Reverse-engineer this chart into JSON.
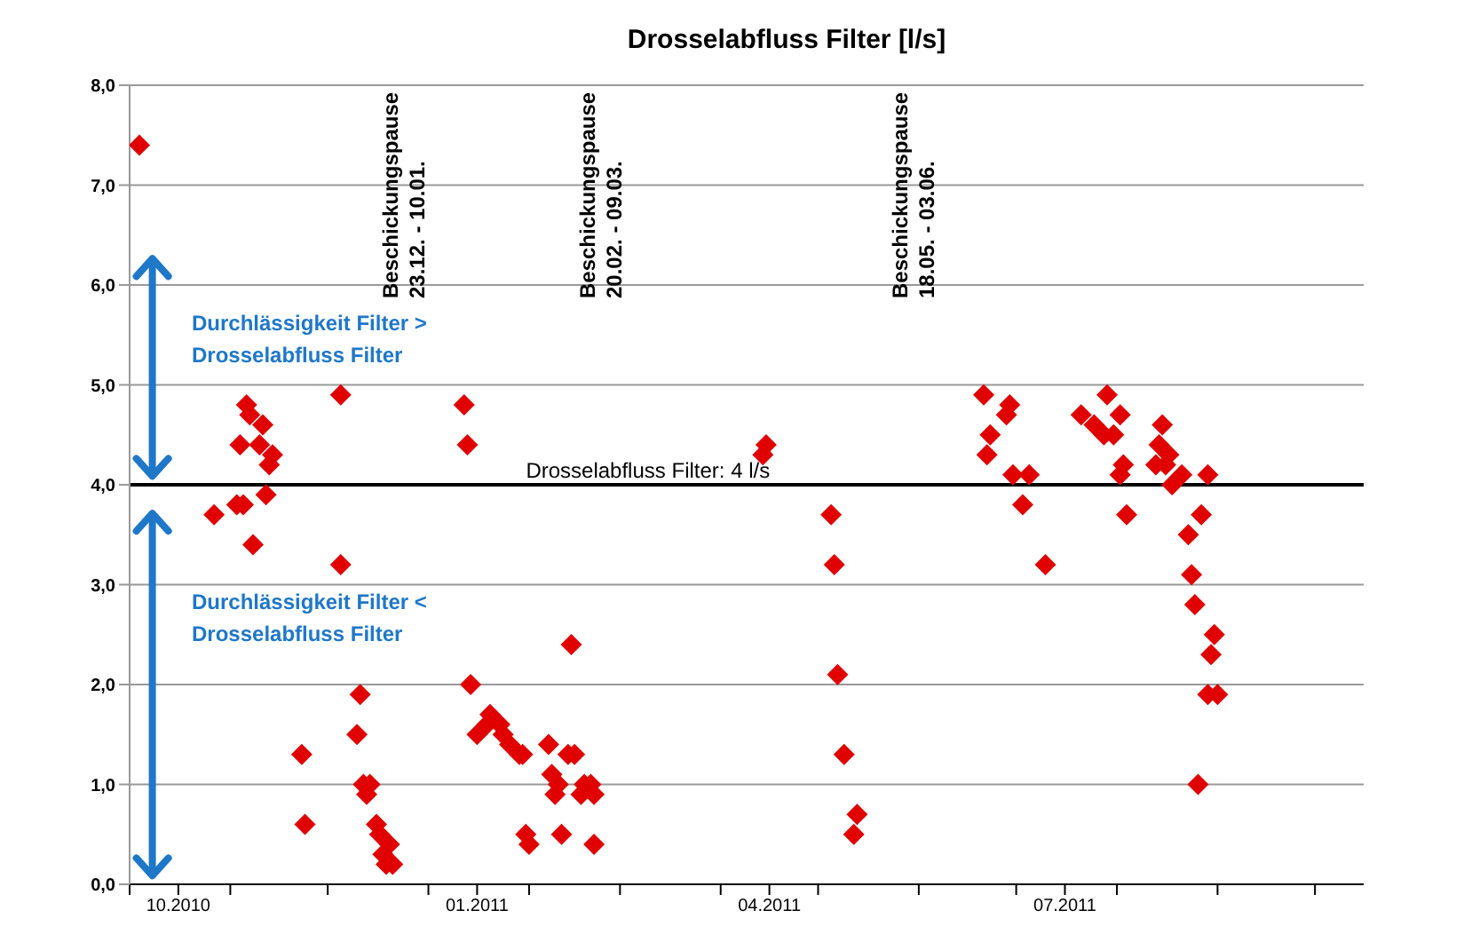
{
  "chart_data": {
    "type": "scatter",
    "title": "Drosselabfluss Filter [l/s]",
    "xlim": [
      "2010-10-01",
      "2011-10-16"
    ],
    "xticks": [
      {
        "value": "2010-10-01",
        "label": null
      },
      {
        "value": "2010-10-16",
        "label": "10.2010"
      },
      {
        "value": "2010-11-01",
        "label": null
      },
      {
        "value": "2010-12-01",
        "label": null
      },
      {
        "value": "2011-01-01",
        "label": null
      },
      {
        "value": "2011-01-16",
        "label": "01.2011"
      },
      {
        "value": "2011-02-01",
        "label": null
      },
      {
        "value": "2011-03-01",
        "label": null
      },
      {
        "value": "2011-04-01",
        "label": null
      },
      {
        "value": "2011-04-16",
        "label": "04.2011"
      },
      {
        "value": "2011-05-01",
        "label": null
      },
      {
        "value": "2011-06-01",
        "label": null
      },
      {
        "value": "2011-07-01",
        "label": null
      },
      {
        "value": "2011-07-16",
        "label": "07.2011"
      },
      {
        "value": "2011-08-01",
        "label": null
      },
      {
        "value": "2011-09-01",
        "label": null
      },
      {
        "value": "2011-10-01",
        "label": null
      }
    ],
    "ylim": [
      0,
      8
    ],
    "yticks": [
      {
        "value": 0,
        "label": "0,0"
      },
      {
        "value": 1,
        "label": "1,0"
      },
      {
        "value": 2,
        "label": "2,0"
      },
      {
        "value": 3,
        "label": "3,0"
      },
      {
        "value": 4,
        "label": "4,0"
      },
      {
        "value": 5,
        "label": "5,0"
      },
      {
        "value": 6,
        "label": "6,0"
      },
      {
        "value": 7,
        "label": "7,0"
      },
      {
        "value": 8,
        "label": "8,0"
      }
    ],
    "grid": "y",
    "marker": "diamond",
    "series": [
      {
        "color": "#e00000",
        "x": [
          "2010-10-04",
          "2010-11-06",
          "2010-11-07",
          "2010-11-11",
          "2010-11-04",
          "2010-11-10",
          "2010-11-14",
          "2010-11-13",
          "2010-11-12",
          "2010-10-27",
          "2010-11-03",
          "2010-11-05",
          "2010-11-08",
          "2010-12-05",
          "2010-12-05",
          "2011-01-12",
          "2011-01-13",
          "2011-02-14",
          "2010-12-11",
          "2011-01-14",
          "2010-12-10",
          "2010-11-23",
          "2010-11-24",
          "2010-12-12",
          "2010-12-14",
          "2010-12-13",
          "2010-12-16",
          "2010-12-17",
          "2010-12-20",
          "2010-12-18",
          "2010-12-21",
          "2010-12-19",
          "2011-01-20",
          "2011-01-19",
          "2011-01-23",
          "2011-01-16",
          "2011-01-24",
          "2011-01-26",
          "2011-01-29",
          "2011-01-30",
          "2011-02-07",
          "2011-02-13",
          "2011-02-15",
          "2011-02-08",
          "2011-02-10",
          "2011-02-09",
          "2011-02-18",
          "2011-02-20",
          "2011-02-17",
          "2011-01-31",
          "2011-02-01",
          "2011-02-11",
          "2011-02-21",
          "2011-02-21",
          "2011-04-15",
          "2011-04-14",
          "2011-05-05",
          "2011-05-06",
          "2011-05-07",
          "2011-05-09",
          "2011-05-13",
          "2011-05-12",
          "2011-06-21",
          "2011-06-28",
          "2011-06-29",
          "2011-06-23",
          "2011-06-22",
          "2011-06-30",
          "2011-07-05",
          "2011-07-03",
          "2011-07-10",
          "2011-07-21",
          "2011-07-29",
          "2011-07-25",
          "2011-07-28",
          "2011-07-31",
          "2011-08-02",
          "2011-08-03",
          "2011-08-02",
          "2011-08-04",
          "2011-08-15",
          "2011-08-14",
          "2011-08-17",
          "2011-08-13",
          "2011-08-16",
          "2011-08-18",
          "2011-08-21",
          "2011-08-29",
          "2011-08-27",
          "2011-08-23",
          "2011-08-24",
          "2011-08-25",
          "2011-08-31",
          "2011-08-30",
          "2011-08-29",
          "2011-09-01",
          "2011-08-26"
        ],
        "values": [
          7.4,
          4.8,
          4.7,
          4.6,
          4.4,
          4.4,
          4.3,
          4.2,
          3.9,
          3.7,
          3.8,
          3.8,
          3.4,
          4.9,
          3.2,
          4.8,
          4.4,
          2.4,
          1.9,
          2.0,
          1.5,
          1.3,
          0.6,
          1.0,
          1.0,
          0.9,
          0.6,
          0.5,
          0.4,
          0.3,
          0.2,
          0.2,
          1.7,
          1.6,
          1.6,
          1.5,
          1.5,
          1.4,
          1.3,
          1.3,
          1.4,
          1.3,
          1.3,
          1.1,
          1.0,
          0.9,
          1.0,
          1.0,
          0.9,
          0.5,
          0.4,
          0.5,
          0.4,
          0.9,
          4.4,
          4.3,
          3.7,
          3.2,
          2.1,
          1.3,
          0.7,
          0.5,
          4.9,
          4.7,
          4.8,
          4.5,
          4.3,
          4.1,
          4.1,
          3.8,
          3.2,
          4.7,
          4.9,
          4.6,
          4.5,
          4.5,
          4.7,
          4.2,
          4.1,
          3.7,
          4.6,
          4.4,
          4.3,
          4.2,
          4.2,
          4.0,
          4.1,
          4.1,
          3.7,
          3.5,
          3.1,
          2.8,
          2.5,
          2.3,
          1.9,
          1.9,
          1.0
        ]
      }
    ],
    "ref_lines": [
      {
        "axis": "y",
        "value": 4,
        "label": "Drosselabfluss Filter: 4 l/s",
        "color": "#000000"
      }
    ],
    "annotations": [
      "Beschickungspause\n23.12. - 10.01.",
      "Beschickungspause\n20.02. - 09.03.",
      "Beschickungspause\n18.05. - 03.06.",
      "Durchlässigkeit Filter >\nDrosselabfluss Filter",
      "Durchlässigkeit Filter <\nDrosselabfluss Filter"
    ]
  }
}
